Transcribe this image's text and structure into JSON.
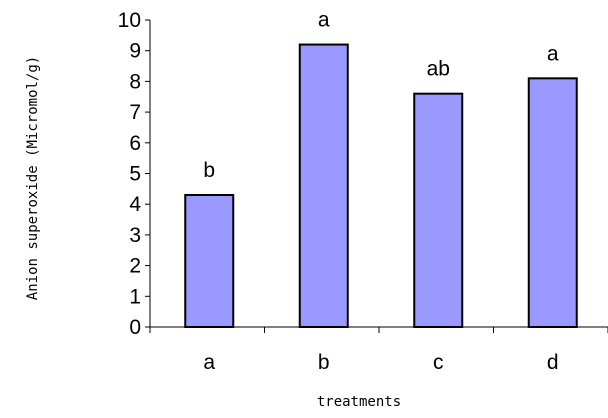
{
  "chart_data": {
    "type": "bar",
    "title": "",
    "xlabel": "treatments",
    "ylabel": "Anion superoxide (Micromol/g)",
    "categories": [
      "a",
      "b",
      "c",
      "d"
    ],
    "values": [
      4.3,
      9.2,
      7.6,
      8.1
    ],
    "significance_labels": [
      "b",
      "a",
      "ab",
      "a"
    ],
    "ylim": [
      0,
      10
    ],
    "yticks": [
      0,
      1,
      2,
      3,
      4,
      5,
      6,
      7,
      8,
      9,
      10
    ],
    "grid": false,
    "legend": "none",
    "colors": {
      "bar_fill": "#9999ff",
      "bar_stroke": "#000000",
      "axis": "#000000"
    }
  }
}
